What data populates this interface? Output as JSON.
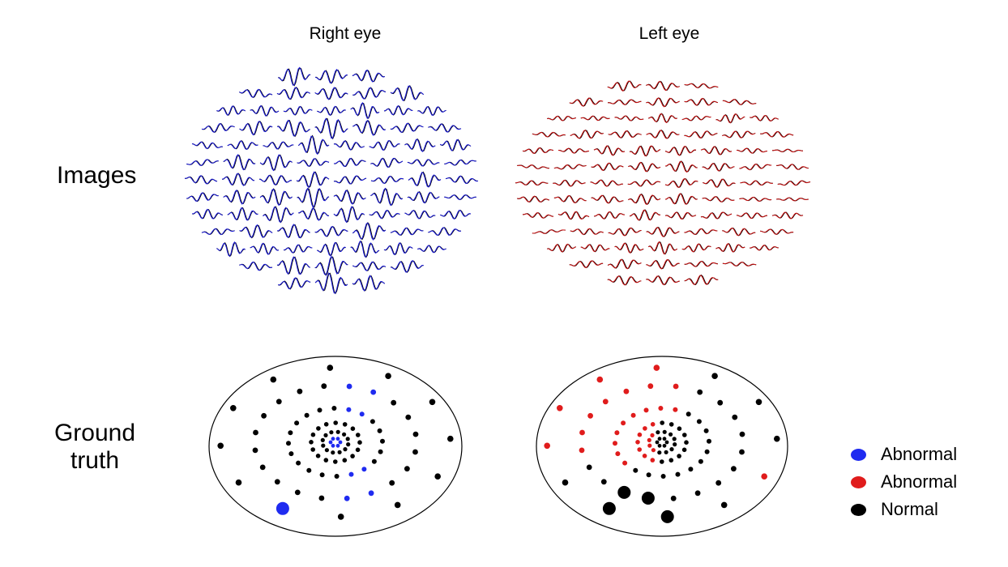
{
  "titles": {
    "right_eye": "Right eye",
    "left_eye": "Left eye"
  },
  "rows": {
    "images": "Images",
    "ground_truth_line1": "Ground",
    "ground_truth_line2": "truth"
  },
  "colors": {
    "right_trace": "#1a1adc",
    "left_trace": "#cc1010",
    "overlay_trace": "#000000",
    "abnormal_right": "#1f2bf0",
    "abnormal_left": "#e01c1c",
    "normal": "#000000"
  },
  "legend": [
    {
      "label": "Abnormal",
      "color": "#1f2bf0"
    },
    {
      "label": "Abnormal",
      "color": "#e01c1c"
    },
    {
      "label": "Normal",
      "color": "#000000"
    }
  ]
}
